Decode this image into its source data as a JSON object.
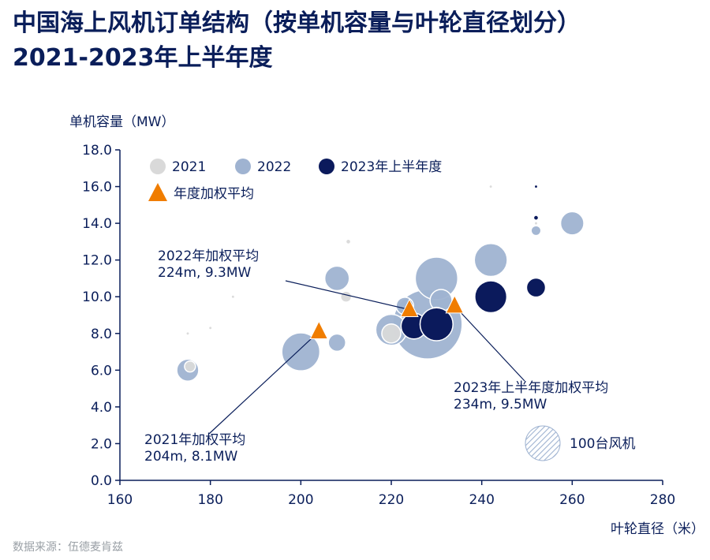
{
  "title_line1": "中国海上风机订单结构（按单机容量与叶轮直径划分）",
  "title_line2": "2021-2023年上半年度",
  "source": "数据来源：伍德麦肯兹",
  "colors": {
    "2021": "#d9d9d9",
    "2022": "#9fb3d1",
    "2023": "#0b1a5c",
    "triangle": "#f07d00",
    "axis": "#0a1e5a"
  },
  "chart_data": {
    "type": "scatter",
    "xlabel": "叶轮直径（米）",
    "ylabel": "单机容量（MW）",
    "xlim": [
      160,
      280
    ],
    "ylim": [
      0,
      18
    ],
    "xticks": [
      "160",
      "180",
      "200",
      "220",
      "240",
      "260",
      "280"
    ],
    "yticks": [
      "0.0",
      "2.0",
      "4.0",
      "6.0",
      "8.0",
      "10.0",
      "12.0",
      "14.0",
      "16.0",
      "18.0"
    ],
    "legend": {
      "placement": "top-left",
      "items": [
        {
          "key": "2021",
          "label": "2021"
        },
        {
          "key": "2022",
          "label": "2022"
        },
        {
          "key": "2023",
          "label": "2023年上半年度"
        },
        {
          "key": "avg",
          "label": "年度加权平均"
        }
      ]
    },
    "size_legend": {
      "label": "100台风机",
      "count": 100
    },
    "series": [
      {
        "key": "2022",
        "points": [
          {
            "x": 228,
            "y": 8.5,
            "count": 400
          },
          {
            "x": 175,
            "y": 6.0,
            "count": 40
          },
          {
            "x": 200,
            "y": 7.0,
            "count": 120
          },
          {
            "x": 208,
            "y": 7.5,
            "count": 25
          },
          {
            "x": 208,
            "y": 11.0,
            "count": 50
          },
          {
            "x": 220,
            "y": 8.2,
            "count": 80
          },
          {
            "x": 223,
            "y": 9.5,
            "count": 25
          },
          {
            "x": 230,
            "y": 11.0,
            "count": 150
          },
          {
            "x": 242,
            "y": 12.0,
            "count": 90
          },
          {
            "x": 260,
            "y": 14.0,
            "count": 45
          },
          {
            "x": 252,
            "y": 13.6,
            "count": 8
          },
          {
            "x": 231,
            "y": 9.8,
            "count": 40
          }
        ]
      },
      {
        "key": "2021",
        "points": [
          {
            "x": 175.5,
            "y": 6.2,
            "count": 10
          },
          {
            "x": 210,
            "y": 10.0,
            "count": 10
          },
          {
            "x": 220,
            "y": 8.0,
            "count": 30
          },
          {
            "x": 230,
            "y": 9.0,
            "count": 20
          },
          {
            "x": 210.5,
            "y": 13.0,
            "count": 2
          },
          {
            "x": 185,
            "y": 10.0,
            "count": 1
          },
          {
            "x": 180,
            "y": 8.3,
            "count": 1
          },
          {
            "x": 175,
            "y": 8.0,
            "count": 1
          },
          {
            "x": 242,
            "y": 16.0,
            "count": 1
          },
          {
            "x": 252,
            "y": 14.0,
            "count": 1
          }
        ]
      },
      {
        "key": "2023",
        "points": [
          {
            "x": 225,
            "y": 8.4,
            "count": 55
          },
          {
            "x": 230,
            "y": 8.5,
            "count": 90
          },
          {
            "x": 242,
            "y": 10.0,
            "count": 85
          },
          {
            "x": 252,
            "y": 10.5,
            "count": 30
          },
          {
            "x": 252,
            "y": 14.3,
            "count": 2
          },
          {
            "x": 252,
            "y": 16.0,
            "count": 1
          }
        ]
      }
    ],
    "weighted_averages": [
      {
        "year": "2021",
        "x": 204,
        "y": 8.1,
        "label1": "2021年加权平均",
        "label2": "204m, 8.1MW"
      },
      {
        "year": "2022",
        "x": 224,
        "y": 9.3,
        "label1": "2022年加权平均",
        "label2": "224m, 9.3MW"
      },
      {
        "year": "2023",
        "x": 234,
        "y": 9.5,
        "label1": "2023年上半年度加权平均",
        "label2": "234m, 9.5MW"
      }
    ]
  }
}
